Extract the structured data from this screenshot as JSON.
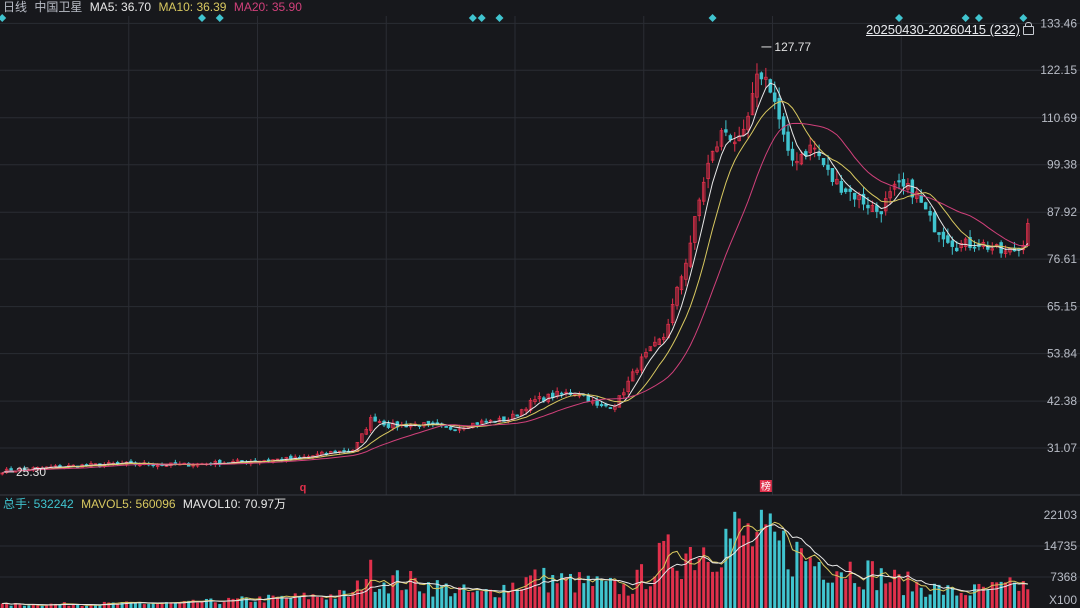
{
  "legend_top": {
    "period": "日线",
    "name": "中国卫星",
    "ma5_label": "MA5: 36.70",
    "ma10_label": "MA10: 36.39",
    "ma20_label": "MA20: 35.90"
  },
  "range_label": "20250430-20260415 (232)",
  "legend_volume": {
    "total_label": "总手: 532242",
    "mavol5_label": "MAVOL5: 560096",
    "mavol10_label": "MAVOL10: 70.97万"
  },
  "colors": {
    "background": "#17181c",
    "grid": "#2a2c33",
    "up": "#e0304b",
    "down": "#40c4cf",
    "ma5": "#e8e8e8",
    "ma10": "#d8c860",
    "ma20": "#d0407a",
    "marker": "#40c4cf",
    "axis_text": "#b8bcc6"
  },
  "chart_data": {
    "type": "candlestick",
    "price_axis_ticks": [
      "133.46",
      "122.15",
      "110.69",
      "99.38",
      "87.92",
      "76.61",
      "65.15",
      "53.84",
      "42.38",
      "31.07"
    ],
    "price_ylim": [
      19.74,
      135.23
    ],
    "volume_axis_ticks": [
      "22103",
      "14735",
      "7368",
      "X100"
    ],
    "volume_ylim": [
      0,
      22103
    ],
    "high_annotation": "127.77",
    "low_annotation": "25.30",
    "event_marker_q": "q",
    "event_marker_bang": "榜",
    "n_bars": 232,
    "anchors": [
      [
        0,
        25.5
      ],
      [
        20,
        26.6
      ],
      [
        40,
        27.3
      ],
      [
        60,
        27.0
      ],
      [
        80,
        27.8
      ],
      [
        100,
        28.6
      ],
      [
        110,
        30.0
      ],
      [
        118,
        30.6
      ],
      [
        124,
        38.5
      ],
      [
        130,
        36.4
      ],
      [
        140,
        36.8
      ],
      [
        150,
        35.8
      ],
      [
        160,
        37.2
      ],
      [
        170,
        38.0
      ],
      [
        178,
        42.4
      ],
      [
        186,
        44.0
      ],
      [
        194,
        44.6
      ],
      [
        200,
        40.8
      ],
      [
        206,
        41.8
      ],
      [
        214,
        52.0
      ],
      [
        222,
        58.0
      ],
      [
        230,
        78.0
      ],
      [
        236,
        98.0
      ],
      [
        242,
        108.0
      ],
      [
        248,
        104.0
      ],
      [
        254,
        122.0
      ],
      [
        258,
        118.0
      ],
      [
        264,
        100.0
      ],
      [
        272,
        104.0
      ],
      [
        278,
        96.0
      ],
      [
        286,
        92.0
      ],
      [
        294,
        88.0
      ],
      [
        300,
        94.0
      ],
      [
        306,
        93.0
      ],
      [
        312,
        85.0
      ],
      [
        320,
        80.0
      ],
      [
        328,
        80.5
      ],
      [
        336,
        78.0
      ],
      [
        342,
        79.5
      ],
      [
        344,
        86.0
      ]
    ],
    "volume_anchors": [
      [
        0,
        900
      ],
      [
        60,
        1300
      ],
      [
        118,
        3600
      ],
      [
        122,
        9500
      ],
      [
        128,
        7500
      ],
      [
        140,
        6500
      ],
      [
        160,
        3500
      ],
      [
        178,
        7800
      ],
      [
        196,
        6500
      ],
      [
        210,
        5000
      ],
      [
        222,
        13000
      ],
      [
        236,
        16500
      ],
      [
        246,
        19500
      ],
      [
        258,
        17000
      ],
      [
        272,
        12500
      ],
      [
        286,
        10500
      ],
      [
        300,
        7000
      ],
      [
        320,
        4000
      ],
      [
        344,
        6000
      ]
    ],
    "marker_bars": [
      0,
      45,
      49,
      106,
      108,
      112,
      160,
      202,
      217,
      220,
      230,
      300
    ]
  }
}
